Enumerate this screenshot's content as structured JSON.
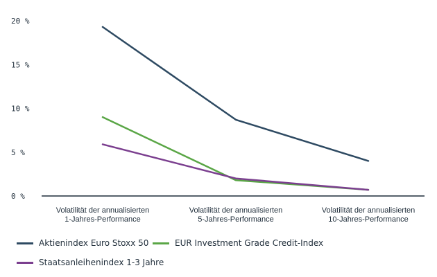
{
  "chart_data": {
    "type": "line",
    "categories": [
      [
        "Volatilität der annualisierten",
        "1-Jahres-Performance"
      ],
      [
        "Volatilität der annualisierten",
        "5-Jahres-Performance"
      ],
      [
        "Volatilität der annualisierten",
        "10-Jahres-Performance"
      ]
    ],
    "yticks": [
      0,
      5,
      10,
      15,
      20
    ],
    "ytick_labels": [
      "0 %",
      "5 %",
      "10 %",
      "15 %",
      "20 %"
    ],
    "ylim": [
      0,
      20
    ],
    "grid": false,
    "legend_position": "bottom-left",
    "series": [
      {
        "name": "Aktienindex Euro Stoxx 50",
        "values": [
          19.3,
          8.7,
          4.0
        ],
        "color": "#2e4a62"
      },
      {
        "name": "EUR Investment Grade Credit-Index",
        "values": [
          9.0,
          1.8,
          0.7
        ],
        "color": "#5aa646"
      },
      {
        "name": "Staatsanleihenindex 1-3 Jahre",
        "values": [
          5.9,
          2.0,
          0.7
        ],
        "color": "#7b3f8f"
      }
    ]
  }
}
